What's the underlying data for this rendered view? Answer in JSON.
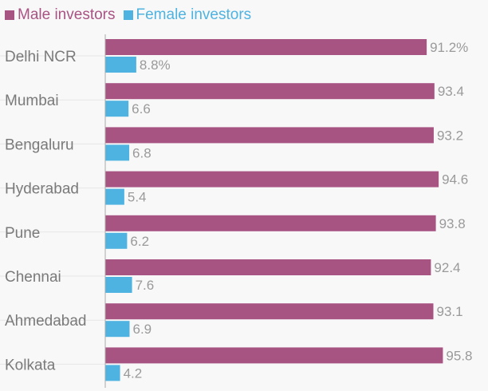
{
  "chart_data": {
    "type": "bar",
    "orientation": "horizontal",
    "categories": [
      "Delhi NCR",
      "Mumbai",
      "Bengaluru",
      "Hyderabad",
      "Pune",
      "Chennai",
      "Ahmedabad",
      "Kolkata"
    ],
    "series": [
      {
        "name": "Male investors",
        "color": "#a85483",
        "values": [
          91.2,
          93.4,
          93.2,
          94.6,
          93.8,
          92.4,
          93.1,
          95.8
        ],
        "labels": [
          "91.2%",
          "93.4",
          "93.2",
          "94.6",
          "93.8",
          "92.4",
          "93.1",
          "95.8"
        ]
      },
      {
        "name": "Female investors",
        "color": "#4fb3e1",
        "values": [
          8.8,
          6.6,
          6.8,
          5.4,
          6.2,
          7.6,
          6.9,
          4.2
        ],
        "labels": [
          "8.8%",
          "6.6",
          "6.8",
          "5.4",
          "6.2",
          "7.6",
          "6.9",
          "4.2"
        ]
      }
    ],
    "xlim": [
      0,
      100
    ],
    "grid": true,
    "legend_position": "top-left",
    "title": "",
    "xlabel": "",
    "ylabel": ""
  }
}
